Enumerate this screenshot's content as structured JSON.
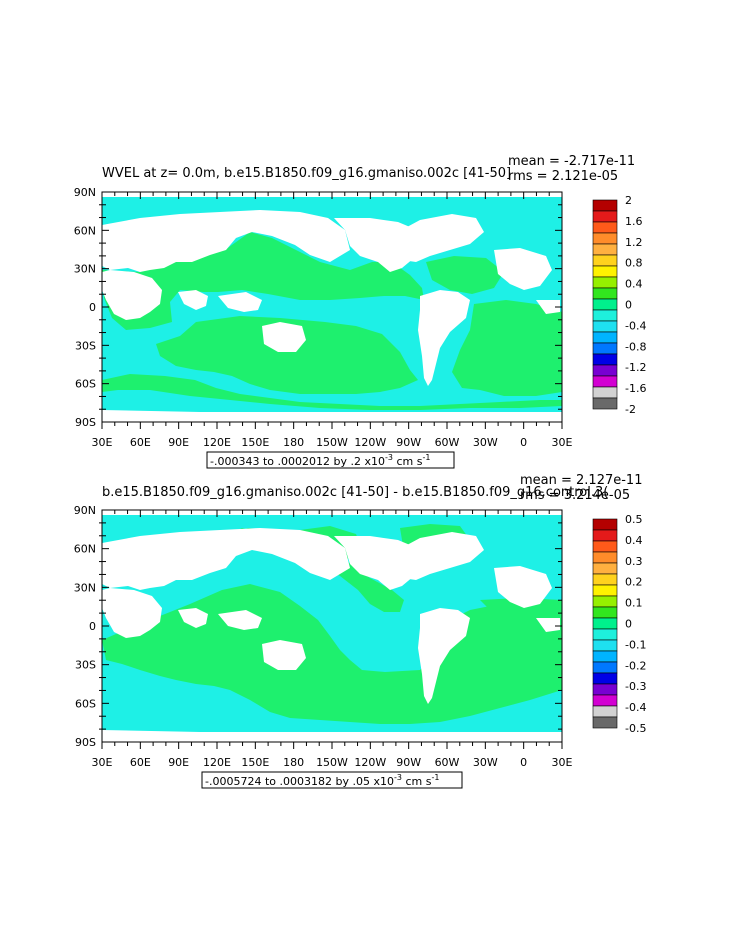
{
  "panels": [
    {
      "title": "WVEL at z=    0.0m, b.e15.B1850.f09_g16.gmaniso.002c [41-50]",
      "stat_mean": "mean = -2.717e-11",
      "stat_rms": "rms = 2.121e-05",
      "range_text": "-.000343 to .0002012 by .2 x10",
      "range_exp": "-3",
      "range_unit": " cm s",
      "range_unit_exp": "-1",
      "legend_labels": [
        "2",
        "1.6",
        "1.2",
        "0.8",
        "0.4",
        "0",
        "-0.4",
        "-0.8",
        "-1.2",
        "-1.6",
        "-2"
      ]
    },
    {
      "title": "b.e15.B1850.f09_g16.gmaniso.002c [41-50] - b.e15.B1850.f09_g16.control.3(",
      "stat_mean": "mean = 2.127e-11",
      "stat_rms": "rms = 3.214e-05",
      "range_text": "-.0005724 to .0003182 by .05 x10",
      "range_exp": "-3",
      "range_unit": " cm s",
      "range_unit_exp": "-1",
      "legend_labels": [
        "0.5",
        "0.4",
        "0.3",
        "0.2",
        "0.1",
        "0",
        "-0.1",
        "-0.2",
        "-0.3",
        "-0.4",
        "-0.5"
      ]
    }
  ],
  "axes": {
    "lat_labels": [
      "90N",
      "60N",
      "30N",
      "0",
      "30S",
      "60S",
      "90S"
    ],
    "lon_labels": [
      "30E",
      "60E",
      "90E",
      "120E",
      "150E",
      "180",
      "150W",
      "120W",
      "90W",
      "60W",
      "30W",
      "0",
      "30E"
    ]
  },
  "legend_colors": [
    "#b40000",
    "#e41a1a",
    "#ff5a1a",
    "#ff8c2a",
    "#ffb040",
    "#ffd21e",
    "#fff200",
    "#96f000",
    "#32e61e",
    "#00f08c",
    "#1ef0dc",
    "#1ee0f0",
    "#00b4ff",
    "#0078ff",
    "#0000e6",
    "#7800d2",
    "#d200d2",
    "#d2d2d2",
    "#696969"
  ],
  "field_colors": {
    "cyan": "#1ef0e6",
    "green": "#1ef06e",
    "land": "#ffffff"
  }
}
